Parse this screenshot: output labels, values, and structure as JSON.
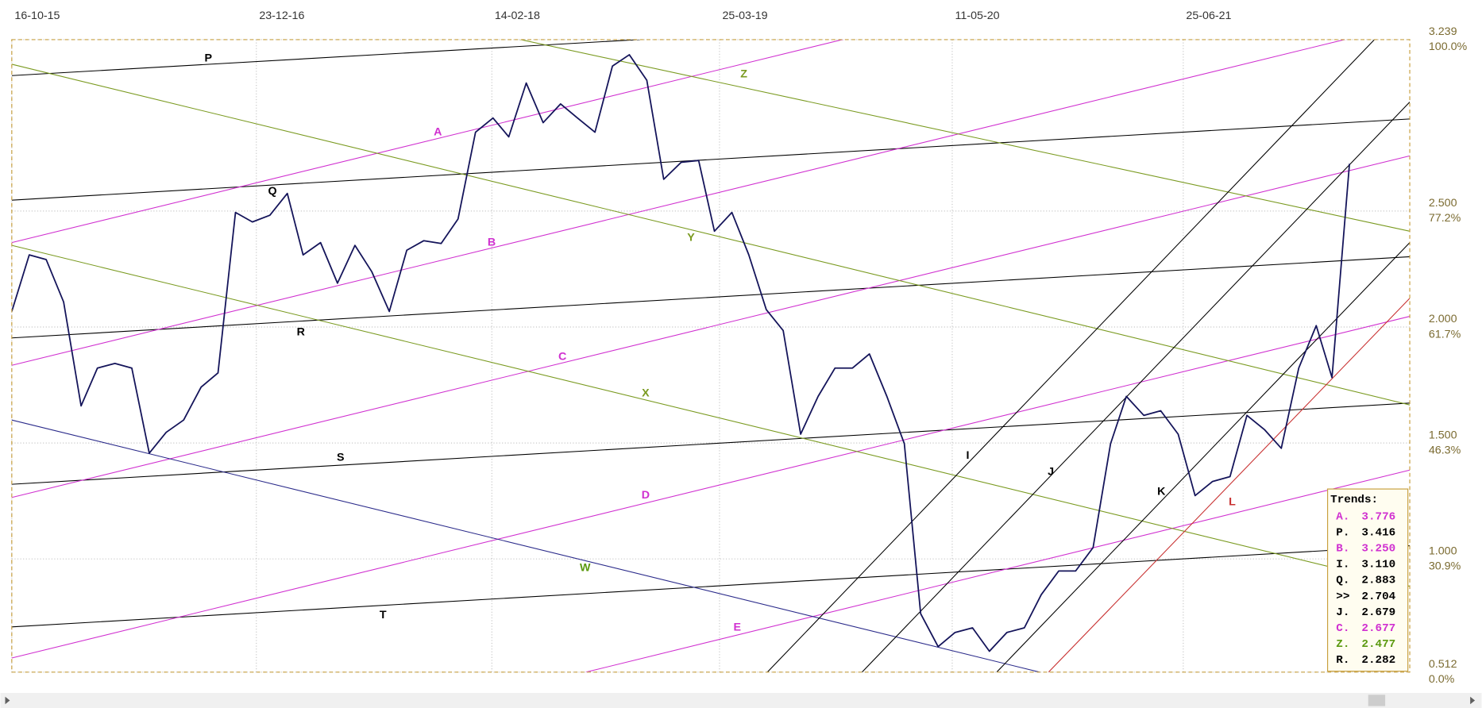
{
  "chart_data": {
    "type": "line",
    "xlim": [
      "2015-10-16",
      "2022-08-01"
    ],
    "xticks": [
      {
        "value": "2015-10-16",
        "label": "16-10-15"
      },
      {
        "value": "2016-12-23",
        "label": "23-12-16"
      },
      {
        "value": "2018-02-14",
        "label": "14-02-18"
      },
      {
        "value": "2019-03-25",
        "label": "25-03-19"
      },
      {
        "value": "2020-05-11",
        "label": "11-05-20"
      },
      {
        "value": "2021-06-25",
        "label": "25-06-21"
      }
    ],
    "ylim": [
      0.512,
      3.239
    ],
    "yticks": [
      0.512,
      {
        "value": 1,
        "label": "1.000"
      },
      {
        "value": 1.5,
        "label": "1.500"
      },
      {
        "value": 2,
        "label": "2.000"
      },
      {
        "value": 2.5,
        "label": "2.500"
      },
      3.239
    ],
    "ytick_pct_labels": [
      "0.0%",
      "30.9%",
      "46.3%",
      "61.7%",
      "77.2%",
      "100.0%"
    ],
    "grid": true,
    "series": [
      {
        "color": "#14145a",
        "x": [
          "2015-10-16",
          "2015-11-16",
          "2015-12-16",
          "2016-01-16",
          "2016-02-16",
          "2016-03-16",
          "2016-04-16",
          "2016-05-16",
          "2016-06-16",
          "2016-07-16",
          "2016-08-16",
          "2016-09-16",
          "2016-10-16",
          "2016-11-16",
          "2016-12-16",
          "2017-01-16",
          "2017-02-16",
          "2017-03-16",
          "2017-04-16",
          "2017-05-16",
          "2017-06-16",
          "2017-07-16",
          "2017-08-16",
          "2017-09-16",
          "2017-10-16",
          "2017-11-16",
          "2017-12-16",
          "2018-01-16",
          "2018-02-16",
          "2018-03-16",
          "2018-04-16",
          "2018-05-16",
          "2018-06-16",
          "2018-07-16",
          "2018-08-16",
          "2018-09-16",
          "2018-10-16",
          "2018-11-16",
          "2018-12-16",
          "2019-01-16",
          "2019-02-16",
          "2019-03-16",
          "2019-04-16",
          "2019-05-16",
          "2019-06-16",
          "2019-07-16",
          "2019-08-16",
          "2019-09-16",
          "2019-10-16",
          "2019-11-16",
          "2019-12-16",
          "2020-01-16",
          "2020-02-16",
          "2020-03-16",
          "2020-04-16",
          "2020-05-16",
          "2020-06-16",
          "2020-07-16",
          "2020-08-16",
          "2020-09-16",
          "2020-10-16",
          "2020-11-16",
          "2020-12-16",
          "2021-01-16",
          "2021-02-16",
          "2021-03-16",
          "2021-04-16",
          "2021-05-16",
          "2021-06-16",
          "2021-07-16",
          "2021-08-16",
          "2021-09-16",
          "2021-10-16",
          "2021-11-16",
          "2021-12-16",
          "2022-01-16",
          "2022-02-16",
          "2022-03-16",
          "2022-04-16"
        ],
        "values": [
          2.067,
          2.311,
          2.291,
          2.108,
          1.66,
          1.823,
          1.843,
          1.823,
          1.456,
          1.546,
          1.599,
          1.741,
          1.802,
          2.494,
          2.453,
          2.482,
          2.576,
          2.311,
          2.364,
          2.189,
          2.352,
          2.238,
          2.067,
          2.331,
          2.372,
          2.36,
          2.466,
          2.84,
          2.901,
          2.82,
          3.052,
          2.881,
          2.962,
          2.901,
          2.84,
          3.125,
          3.174,
          3.064,
          2.637,
          2.71,
          2.718,
          2.413,
          2.494,
          2.311,
          2.075,
          1.985,
          1.538,
          1.701,
          1.823,
          1.823,
          1.884,
          1.701,
          1.497,
          0.764,
          0.622,
          0.683,
          0.703,
          0.602,
          0.683,
          0.703,
          0.846,
          0.948,
          0.948,
          1.049,
          1.497,
          1.701,
          1.619,
          1.639,
          1.538,
          1.273,
          1.334,
          1.355,
          1.619,
          1.558,
          1.477,
          1.823,
          2.006,
          1.782,
          2.704
        ]
      }
    ],
    "trendlines": [
      {
        "name": "P",
        "color": "#000000",
        "x": [
          "2015-10-16",
          "2022-08-01"
        ],
        "values": [
          3.084,
          3.43
        ]
      },
      {
        "name": "Q",
        "color": "#000000",
        "x": [
          "2015-10-16",
          "2022-08-01"
        ],
        "values": [
          2.547,
          2.897
        ]
      },
      {
        "name": "R",
        "color": "#000000",
        "x": [
          "2015-10-16",
          "2022-08-01"
        ],
        "values": [
          1.953,
          2.303
        ]
      },
      {
        "name": "S",
        "color": "#000000",
        "x": [
          "2015-10-16",
          "2022-08-01"
        ],
        "values": [
          1.322,
          1.672
        ]
      },
      {
        "name": "T",
        "color": "#000000",
        "x": [
          "2015-10-16",
          "2022-08-01"
        ],
        "values": [
          0.707,
          1.057
        ]
      },
      {
        "name": "A",
        "color": "#d030d0",
        "x": [
          "2015-10-16",
          "2022-08-01"
        ],
        "values": [
          2.364,
          3.837
        ]
      },
      {
        "name": "B",
        "color": "#d030d0",
        "x": [
          "2015-10-16",
          "2022-08-01"
        ],
        "values": [
          1.835,
          3.308
        ]
      },
      {
        "name": "C",
        "color": "#d030d0",
        "x": [
          "2015-10-16",
          "2022-08-01"
        ],
        "values": [
          1.265,
          2.738
        ]
      },
      {
        "name": "D",
        "color": "#d030d0",
        "x": [
          "2015-10-16",
          "2022-08-01"
        ],
        "values": [
          0.573,
          2.046
        ]
      },
      {
        "name": "E",
        "color": "#d030d0",
        "x": [
          "2018-07-31",
          "2022-08-01"
        ],
        "values": [
          0.512,
          1.383
        ]
      },
      {
        "name": "W",
        "color": "#2a2a8a",
        "label_color": "#5c9a10",
        "x": [
          "2015-10-16",
          "2020-10-13"
        ],
        "values": [
          1.599,
          0.512
        ]
      },
      {
        "name": "X",
        "color": "#7a9a20",
        "x": [
          "2015-10-16",
          "2022-08-01"
        ],
        "values": [
          2.352,
          0.882
        ]
      },
      {
        "name": "Y",
        "color": "#7a9a20",
        "x": [
          "2015-10-16",
          "2022-08-01"
        ],
        "values": [
          3.133,
          1.664
        ]
      },
      {
        "name": "Z",
        "color": "#7a9a20",
        "x": [
          "2015-10-16",
          "2022-08-01"
        ],
        "values": [
          3.712,
          2.413
        ]
      },
      {
        "name": "I",
        "color": "#000000",
        "x": [
          "2019-06-18",
          "2022-08-01"
        ],
        "values": [
          0.512,
          3.398
        ]
      },
      {
        "name": "J",
        "color": "#000000",
        "x": [
          "2019-12-03",
          "2022-08-01"
        ],
        "values": [
          0.512,
          2.97
        ]
      },
      {
        "name": "K",
        "color": "#000000",
        "x": [
          "2020-07-29",
          "2022-08-01"
        ],
        "values": [
          0.512,
          2.364
        ]
      },
      {
        "name": "L",
        "color": "#c83030",
        "x": [
          "2020-10-29",
          "2022-08-01"
        ],
        "values": [
          0.512,
          2.124
        ]
      }
    ],
    "trends_title": "Trends:",
    "trends": {
      "labels": [
        "A.",
        "P.",
        "B.",
        "I.",
        "Q.",
        ">>",
        "J.",
        "C.",
        "Z.",
        "R."
      ],
      "values": [
        3.776,
        3.416,
        3.25,
        3.11,
        2.883,
        2.704,
        2.679,
        2.677,
        2.477,
        2.282
      ],
      "value_labels": [
        "3.776",
        "3.416",
        "3.250",
        "3.110",
        "2.883",
        "2.704",
        "2.679",
        "2.677",
        "2.477",
        "2.282"
      ],
      "colors": [
        "#d030d0",
        "#000000",
        "#d030d0",
        "#000000",
        "#000000",
        "#000000",
        "#000000",
        "#d030d0",
        "#5c9a10",
        "#000000"
      ]
    }
  }
}
